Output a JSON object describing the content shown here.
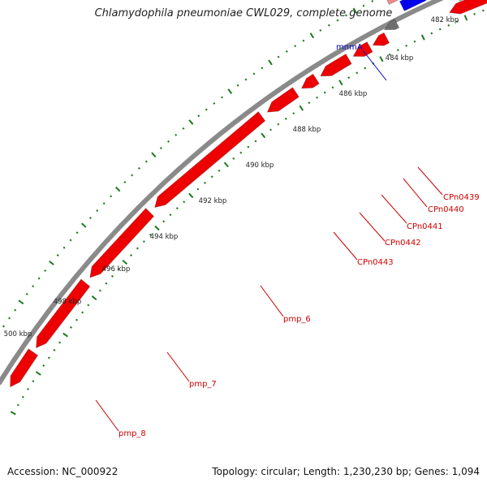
{
  "title": "Chlamydophila pneumoniae CWL029, complete genome",
  "footer": {
    "accession": "Accession: NC_000922",
    "summary": "Topology: circular; Length: 1,230,230 bp; Genes: 1,094"
  },
  "tick_labels": [
    "482 kbp",
    "484 kbp",
    "486 kbp",
    "488 kbp",
    "490 kbp",
    "492 kbp",
    "494 kbp",
    "496 kbp",
    "498 kbp",
    "500 kbp"
  ],
  "gene_labels": [
    {
      "name": "mnmA",
      "color": "#0000cc"
    },
    {
      "name": "CPn0439",
      "color": "#cc0000"
    },
    {
      "name": "CPn0440",
      "color": "#cc0000"
    },
    {
      "name": "CPn0441",
      "color": "#cc0000"
    },
    {
      "name": "CPn0442",
      "color": "#cc0000"
    },
    {
      "name": "CPn0443",
      "color": "#cc0000"
    },
    {
      "name": "pmp_6",
      "color": "#cc0000"
    },
    {
      "name": "pmp_7",
      "color": "#cc0000"
    },
    {
      "name": "pmp_8",
      "color": "#cc0000"
    }
  ],
  "colors": {
    "cds_red": "#ee0000",
    "cds_blue": "#0000ee",
    "cds_pink": "#ee8a8a",
    "cds_olive": "#b8b07a",
    "cds_gray": "#6e6e6e",
    "backbone": "#8a8a8a",
    "tick": "#1a7a1a"
  }
}
